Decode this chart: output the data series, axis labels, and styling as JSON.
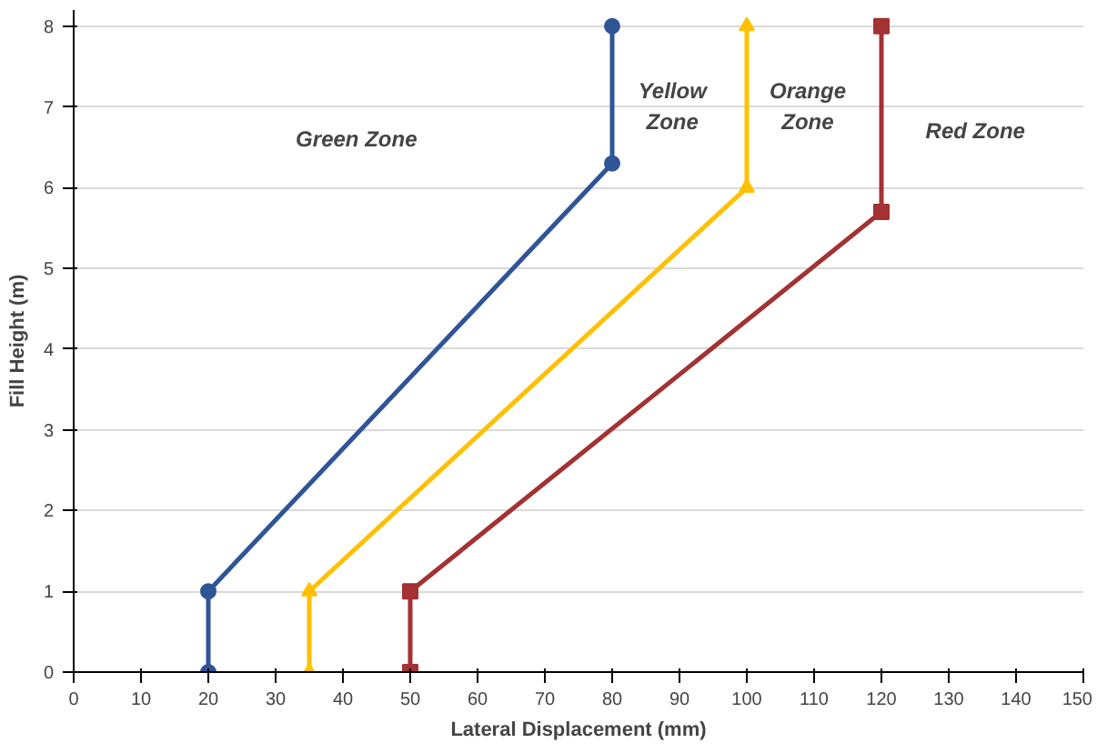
{
  "chart_data": {
    "type": "line",
    "xlabel": "Lateral Displacement (mm)",
    "ylabel": "Fill Height (m)",
    "xlim": [
      0,
      150
    ],
    "ylim": [
      0,
      8.2
    ],
    "xticks": [
      0,
      10,
      20,
      30,
      40,
      50,
      60,
      70,
      80,
      90,
      100,
      110,
      120,
      130,
      140,
      150
    ],
    "yticks": [
      0,
      1,
      2,
      3,
      4,
      5,
      6,
      7,
      8
    ],
    "grid": "y",
    "line_style": "solid",
    "series": [
      {
        "color": "#2f5597",
        "marker": "circle",
        "x": [
          20,
          20,
          80,
          80
        ],
        "values": [
          0,
          1,
          6.3,
          8
        ]
      },
      {
        "color": "#ffc000",
        "marker": "triangle",
        "x": [
          35,
          35,
          100,
          100
        ],
        "values": [
          0,
          1,
          6,
          8
        ]
      },
      {
        "color": "#a33233",
        "marker": "square",
        "x": [
          50,
          50,
          120,
          120
        ],
        "values": [
          0,
          1,
          5.7,
          8
        ]
      }
    ],
    "annotations": [
      "Green Zone",
      "Yellow\nZone",
      "Orange\nZone",
      "Red Zone"
    ]
  }
}
